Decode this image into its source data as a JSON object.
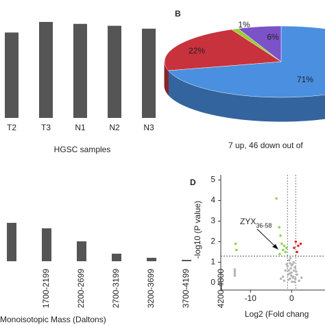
{
  "chart_data": [
    {
      "type": "bar",
      "categories": [
        "T2",
        "T3",
        "N1",
        "N2",
        "N3"
      ],
      "values": [
        89,
        100,
        98,
        96,
        93
      ],
      "color": "#555555",
      "ylim": [
        0,
        100
      ],
      "x_label": "HGSC samples"
    },
    {
      "type": "pie",
      "label": "B",
      "categories_count": 4,
      "values": [
        71,
        22,
        1,
        6
      ],
      "value_labels": [
        "71%",
        "22%",
        "1%",
        "6%"
      ],
      "colors": [
        "#4a8fe0",
        "#c8323c",
        "#9acd32",
        "#7b52c8"
      ]
    },
    {
      "type": "bar",
      "categories": [
        null,
        "1700-2199",
        "2200-2699",
        "2700-3199",
        "3200-3699",
        "3700-4199",
        "4200-4800"
      ],
      "values": [
        56,
        48,
        29,
        11,
        5,
        2,
        0
      ],
      "color": "#555555",
      "ylim": [
        0,
        60
      ],
      "x_label": "Monoisotopic Mass (Daltons)"
    },
    {
      "type": "scatter",
      "label": "D",
      "title": "7 up, 46 down out of",
      "x_label": "Log2 (Fold chang",
      "y_label": "-log10 (P value)",
      "xlim": [
        -17.2,
        8.1
      ],
      "ylim": [
        -0.35,
        5.25
      ],
      "xticks": [
        -10,
        0
      ],
      "yticks": [
        0,
        1,
        2,
        3,
        4,
        5
      ],
      "thresholds": {
        "x": [
          -1,
          1
        ],
        "y": 1.3
      },
      "annotation": {
        "text": "ZYX",
        "subscript": "36-58"
      },
      "series": [
        {
          "color": "#b5b5b5",
          "x": [
            -2.1,
            -1.5,
            -1.2,
            -0.9,
            -0.6,
            -0.4,
            -0.2,
            0,
            0.2,
            0.4,
            0.6,
            0.9,
            1.3,
            1.8,
            -0.8,
            -0.3,
            0.1,
            0.5,
            -1.0,
            -0.5,
            0.3,
            0.8,
            -1.8,
            1.1,
            -0.1,
            0.7,
            -0.7,
            0.0,
            -13.8,
            -13.8,
            -13.8,
            -13.8,
            -2.6,
            2.4,
            -0.4
          ],
          "values": [
            0.3,
            0.6,
            0.9,
            0.4,
            1.1,
            0.2,
            0.7,
            0.5,
            0.9,
            0.3,
            0.6,
            0.2,
            0.4,
            0.1,
            0.15,
            1.2,
            0.05,
            1.0,
            0.8,
            0.45,
            0.25,
            0.75,
            0.1,
            0.55,
            0.35,
            0.05,
            0.6,
            0.85,
            0.35,
            0.45,
            0.55,
            0.65,
            0.2,
            0.25,
            0.95
          ]
        },
        {
          "color": "#8fd14f",
          "x": [
            -13.6,
            -13.4,
            -3.7,
            -3.0,
            -2.7,
            -2.4,
            -2.1,
            -1.8,
            -1.5,
            -2.9,
            -1.3
          ],
          "values": [
            1.9,
            1.6,
            4.1,
            2.7,
            2.3,
            1.9,
            1.6,
            1.8,
            1.5,
            1.4,
            1.7
          ]
        },
        {
          "color": "#e0202a",
          "x": [
            0.6,
            1.0,
            1.6,
            2.2,
            1.3
          ],
          "values": [
            1.7,
            2.0,
            1.8,
            1.9,
            1.5
          ]
        }
      ]
    }
  ]
}
